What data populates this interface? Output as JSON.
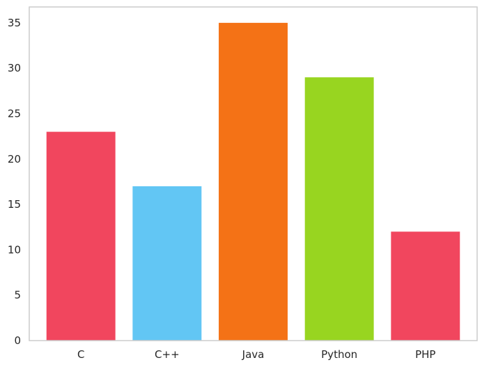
{
  "chart_data": {
    "type": "bar",
    "categories": [
      "C",
      "C++",
      "Java",
      "Python",
      "PHP"
    ],
    "values": [
      23,
      17,
      35,
      29,
      12
    ],
    "colors": [
      "#f1465e",
      "#62c6f4",
      "#f47216",
      "#98d520",
      "#f1465e"
    ],
    "title": "",
    "xlabel": "",
    "ylabel": "",
    "ylim": [
      0,
      36.75
    ],
    "yticks": [
      0,
      5,
      10,
      15,
      20,
      25,
      30,
      35
    ],
    "grid": false,
    "legend": "none"
  }
}
